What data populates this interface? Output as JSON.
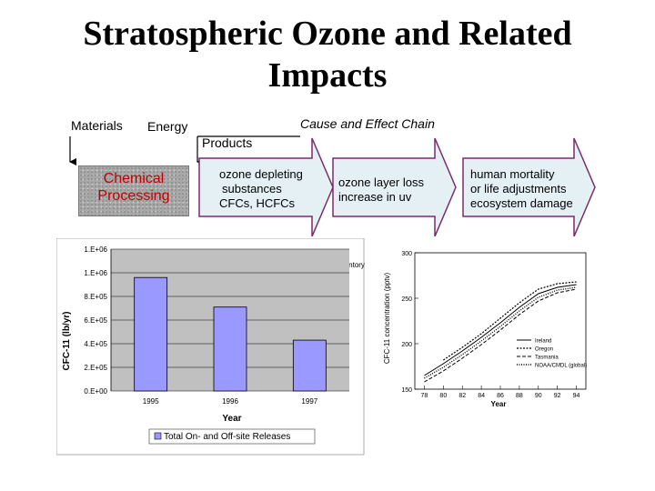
{
  "title_line1": "Stratospheric Ozone and Related",
  "title_line2": "Impacts",
  "labels": {
    "materials": "Materials",
    "energy": "Energy",
    "cause_effect": "Cause and Effect Chain",
    "products": "Products"
  },
  "chain": {
    "chemical_line1": "Chemical",
    "chemical_line2": "Processing",
    "ods_line1": "ozone depleting",
    "ods_line2": "substances",
    "ods_line3": "CFCs, HCFCs",
    "loss_line1": "ozone layer loss",
    "loss_line2": "increase in uv",
    "human_line1": "human mortality",
    "human_line2": "or life adjustments",
    "human_line3": "ecosystem damage"
  },
  "colors": {
    "arrow_fill": "#e4f0f4",
    "arrow_stroke": "#7a2c6e",
    "bar_fill": "#9999ff",
    "plot_bg": "#c0c0c0",
    "chem_text": "#c00000"
  },
  "chart_data": [
    {
      "type": "bar",
      "title": "Toxics Release Inventory Data",
      "categories": [
        "1995",
        "1996",
        "1997"
      ],
      "series": [
        {
          "name": "Total On- and Off-site Releases",
          "values": [
            960000,
            710000,
            430000
          ]
        }
      ],
      "ytick_labels": [
        "0.E+00",
        "2.E+05",
        "4.E+05",
        "6.E+05",
        "8.E+05",
        "1.E+06",
        "1.E+06"
      ],
      "ytick_values": [
        0,
        200000,
        400000,
        600000,
        800000,
        1000000,
        1200000
      ],
      "ylim": [
        0,
        1200000
      ],
      "xlabel": "Year",
      "ylabel": "CFC-11 (lb/yr)",
      "legend": "bottom",
      "grid": true
    },
    {
      "type": "line",
      "xlabel": "Year",
      "ylabel": "CFC-11 concentration (pptv)",
      "xlim": [
        77,
        95
      ],
      "ylim": [
        150,
        300
      ],
      "xtick_labels": [
        "78",
        "80",
        "82",
        "84",
        "86",
        "88",
        "90",
        "92",
        "94"
      ],
      "xtick_values": [
        78,
        80,
        82,
        84,
        86,
        88,
        90,
        92,
        94
      ],
      "ytick_labels": [
        "150",
        "200",
        "250",
        "300"
      ],
      "ytick_values": [
        150,
        200,
        250,
        300
      ],
      "legend": "bottom-right",
      "series": [
        {
          "name": "Ireland",
          "x": [
            78,
            80,
            82,
            84,
            86,
            88,
            90,
            92,
            94
          ],
          "y": [
            165,
            178,
            192,
            207,
            223,
            240,
            255,
            262,
            265
          ]
        },
        {
          "name": "Oregon",
          "x": [
            80,
            82,
            84,
            86,
            88,
            90,
            92,
            94
          ],
          "y": [
            182,
            196,
            211,
            228,
            245,
            260,
            266,
            268
          ]
        },
        {
          "name": "Tasmania",
          "x": [
            78,
            80,
            82,
            84,
            86,
            88,
            90,
            92,
            94
          ],
          "y": [
            158,
            170,
            184,
            199,
            215,
            232,
            247,
            256,
            260
          ]
        },
        {
          "name": "NOAA/CMDL (global)",
          "x": [
            78,
            80,
            82,
            84,
            86,
            88,
            90,
            92,
            94
          ],
          "y": [
            162,
            174,
            188,
            203,
            219,
            236,
            251,
            259,
            262
          ]
        }
      ]
    }
  ]
}
